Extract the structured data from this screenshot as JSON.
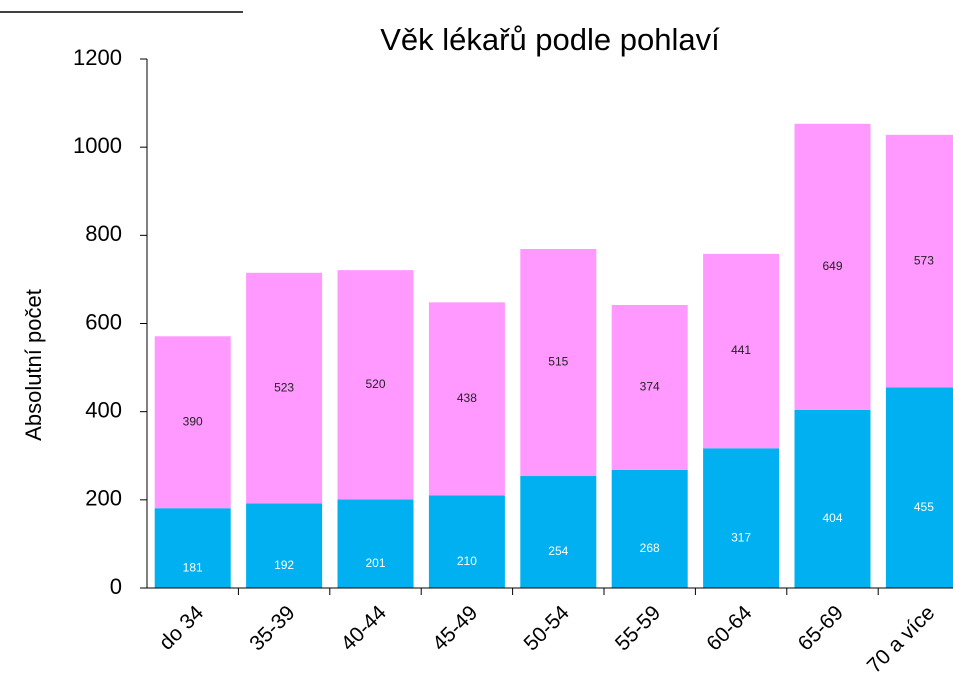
{
  "chart_data": {
    "type": "stacked_bar",
    "title": "Věk lékařů podle pohlaví",
    "ylabel": "Absolutní počet",
    "categories": [
      "do 34",
      "35-39",
      "40-44",
      "45-49",
      "50-54",
      "55-59",
      "60-64",
      "65-69",
      "70 a více"
    ],
    "series": [
      {
        "color": "#00b0f0",
        "values": [
          181,
          192,
          201,
          210,
          254,
          268,
          317,
          404,
          455
        ]
      },
      {
        "color": "#ff99ff",
        "values": [
          390,
          523,
          520,
          438,
          515,
          374,
          441,
          649,
          573
        ]
      }
    ],
    "ylim": [
      0,
      1200
    ],
    "yticks": [
      0,
      200,
      400,
      600,
      800,
      1000,
      1200
    ],
    "grid": false
  }
}
